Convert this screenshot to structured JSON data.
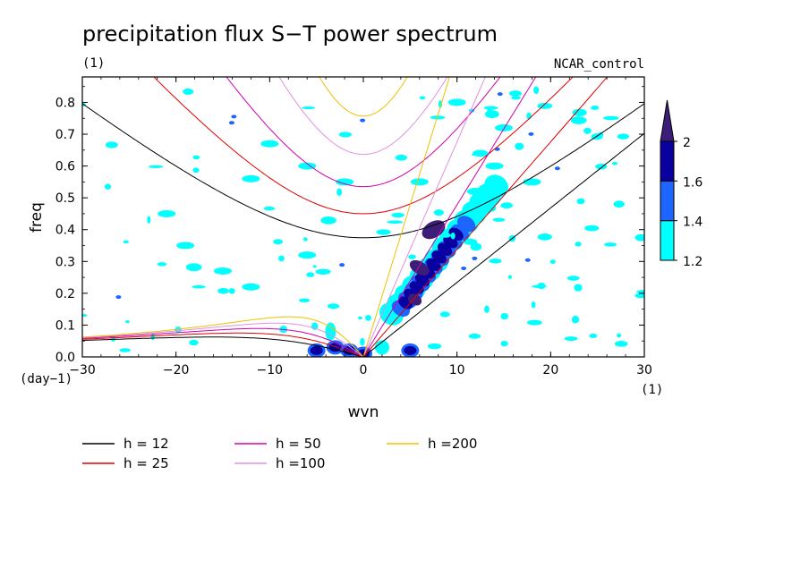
{
  "chart_data": {
    "type": "heatmap",
    "title": "precipitation flux S−T power spectrum",
    "subtitle_left": "(1)",
    "subtitle_right": "NCAR_control",
    "xlabel": "wvn",
    "ylabel": "freq",
    "x_unit_label": "(1)",
    "y_unit_label": "(day−1)",
    "xlim": [
      -30,
      30
    ],
    "ylim": [
      0,
      0.88
    ],
    "x_ticks": [
      "−30",
      "−20",
      "−10",
      "0",
      "10",
      "20",
      "30"
    ],
    "x_tick_values": [
      -30,
      -20,
      -10,
      0,
      10,
      20,
      30
    ],
    "y_ticks": [
      "0.0",
      "0.1",
      "0.2",
      "0.3",
      "0.4",
      "0.5",
      "0.6",
      "0.7",
      "0.8"
    ],
    "y_tick_values": [
      0,
      0.1,
      0.2,
      0.3,
      0.4,
      0.5,
      0.6,
      0.7,
      0.8
    ],
    "colorbar": {
      "levels": [
        "1.2",
        "1.4",
        "1.6",
        "2"
      ],
      "colors": [
        "#00ffff",
        "#1e64ff",
        "#0a00a0",
        "#3c1e78"
      ]
    },
    "legend": [
      {
        "label": "h = 12",
        "h": 12,
        "color": "#000000"
      },
      {
        "label": "h = 25",
        "h": 25,
        "color": "#e00000"
      },
      {
        "label": "h = 50",
        "h": 50,
        "color": "#d000b0"
      },
      {
        "label": "h =100",
        "h": 100,
        "color": "#e090e0"
      },
      {
        "label": "h =200",
        "h": 200,
        "color": "#f0c000"
      }
    ]
  }
}
